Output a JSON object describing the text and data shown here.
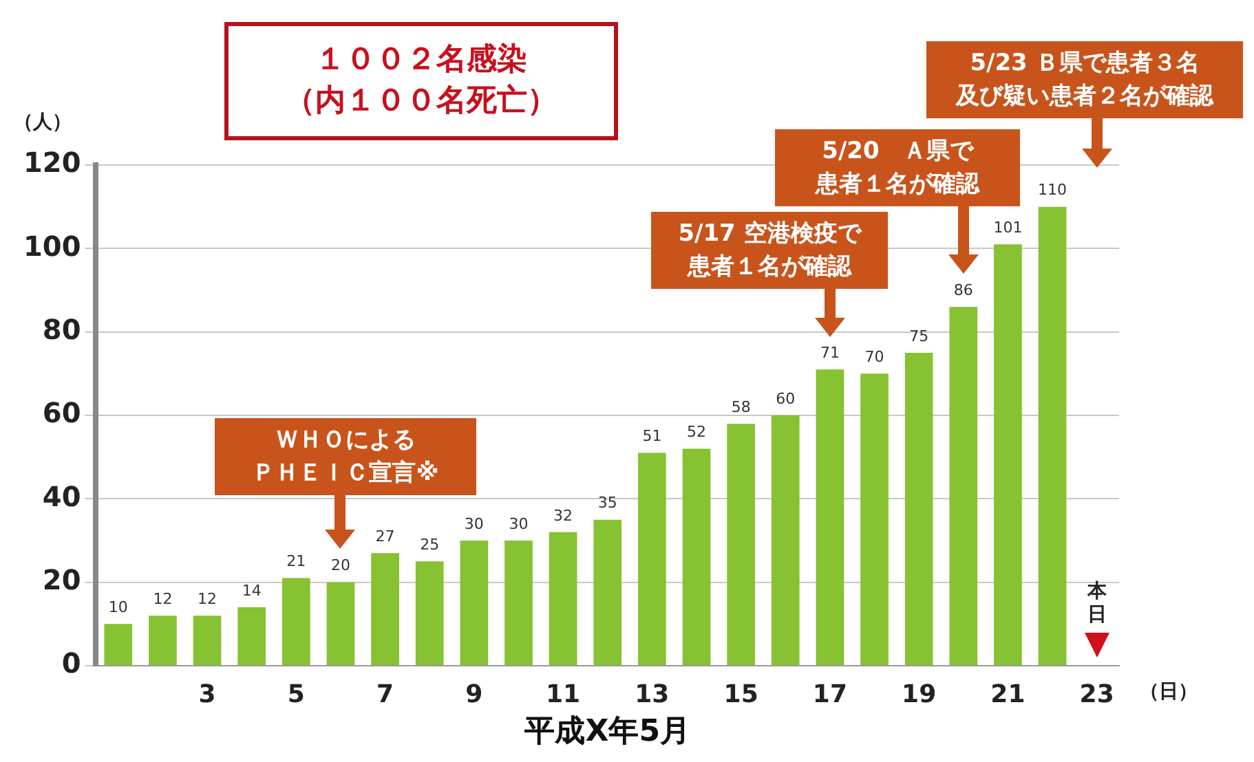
{
  "chart_data": {
    "type": "bar",
    "ylabel": "（人）",
    "xlabel": "平成X年5月",
    "categories": [
      null,
      null,
      "3",
      null,
      "5",
      null,
      "7",
      null,
      "9",
      null,
      "11",
      null,
      "13",
      null,
      "15",
      null,
      "17",
      null,
      "19",
      null,
      "21",
      null,
      "23"
    ],
    "values": [
      10,
      12,
      12,
      14,
      21,
      20,
      27,
      25,
      30,
      30,
      32,
      35,
      51,
      52,
      58,
      60,
      71,
      70,
      75,
      86,
      101,
      110,
      null
    ],
    "color": "#86c232",
    "data_labels": true,
    "ylim": [
      0,
      120
    ],
    "yticks": [
      0,
      20,
      40,
      60,
      80,
      100,
      120
    ],
    "grid": "y",
    "legend": false,
    "annotations": [
      "１００２名感染（内１００名死亡）",
      "ＷＨＯによるＰＨＥＩＣ宣言※",
      "5/17 空港検疫で患者１名が確認",
      "5/20　Ａ県で患者１名が確認",
      "5/23 Ｂ県で患者３名及び疑い患者２名が確認",
      "本日",
      "（日）"
    ]
  }
}
